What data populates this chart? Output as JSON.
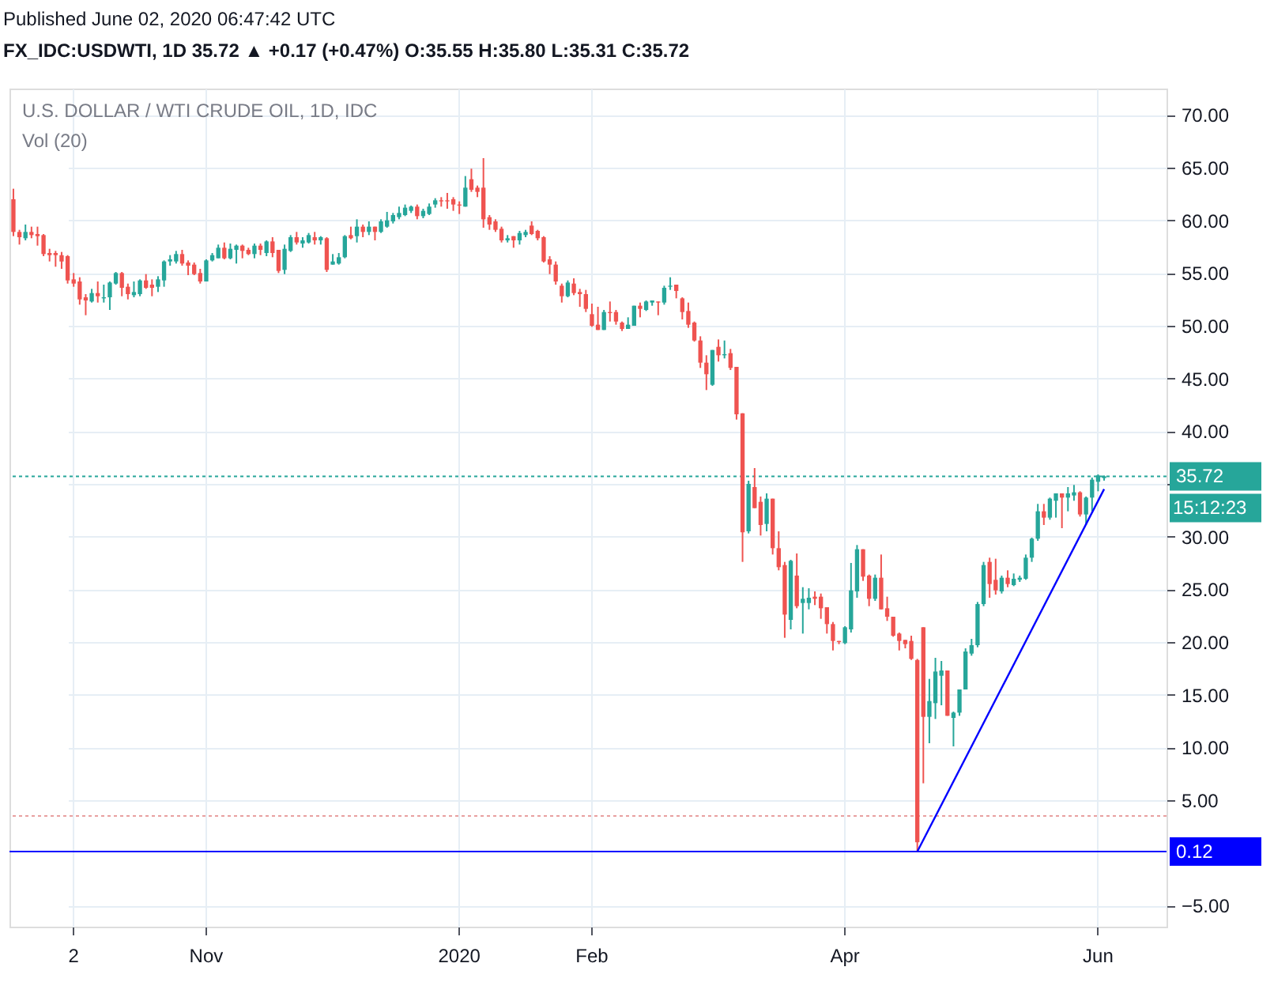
{
  "chart_data": {
    "type": "candlestick",
    "title": "FX_IDC:USDWTI, 1D 35.72 ▲ +0.17 (+0.47%) O:35.55 H:35.80 L:35.31 C:35.72",
    "subtitle": "U.S. DOLLAR / WTI CRUDE OIL, 1D, IDC",
    "annotations": [
      "Published June 02, 2020 06:47:42 UTC",
      "Vol (20)",
      "15:12:23"
    ],
    "categories": [
      null,
      null,
      null,
      null,
      null,
      null,
      null,
      null,
      null,
      null,
      "2",
      null,
      null,
      null,
      null,
      null,
      null,
      null,
      null,
      null,
      null,
      null,
      null,
      null,
      null,
      null,
      null,
      null,
      null,
      null,
      null,
      null,
      "Nov",
      null,
      null,
      null,
      null,
      null,
      null,
      null,
      null,
      null,
      null,
      null,
      null,
      null,
      null,
      null,
      null,
      null,
      null,
      null,
      null,
      null,
      null,
      null,
      null,
      null,
      null,
      null,
      null,
      null,
      null,
      null,
      null,
      null,
      null,
      null,
      null,
      null,
      null,
      null,
      null,
      null,
      "2020",
      null,
      null,
      null,
      null,
      null,
      null,
      null,
      null,
      null,
      null,
      null,
      null,
      null,
      null,
      null,
      null,
      null,
      null,
      null,
      null,
      null,
      "Feb",
      null,
      null,
      null,
      null,
      null,
      null,
      null,
      null,
      null,
      null,
      null,
      null,
      null,
      null,
      null,
      null,
      null,
      null,
      null,
      null,
      null,
      null,
      null,
      null,
      null,
      null,
      null,
      null,
      null,
      null,
      null,
      null,
      null,
      null,
      null,
      null,
      null,
      null,
      null,
      null,
      null,
      "Apr",
      null,
      null,
      null,
      null,
      null,
      null,
      null,
      null,
      null,
      null,
      null,
      null,
      null,
      null,
      null,
      null,
      null,
      null,
      null,
      null,
      null,
      null,
      null,
      null,
      null,
      null,
      null,
      null,
      null,
      null,
      null,
      null,
      null,
      null,
      null,
      null,
      null,
      null,
      null,
      null,
      null,
      "Jun",
      null
    ],
    "ohlc": [
      [
        62.0,
        63.0,
        58.5,
        58.9
      ],
      [
        58.9,
        59.1,
        57.7,
        58.4
      ],
      [
        58.3,
        59.6,
        58.1,
        58.9
      ],
      [
        58.9,
        59.4,
        58.3,
        58.6
      ],
      [
        58.7,
        59.4,
        57.6,
        58.5
      ],
      [
        58.6,
        58.7,
        56.6,
        56.8
      ],
      [
        56.9,
        57.3,
        56.1,
        56.7
      ],
      [
        56.9,
        57.1,
        55.6,
        56.7
      ],
      [
        56.7,
        57.0,
        55.4,
        56.1
      ],
      [
        56.6,
        56.7,
        54.0,
        54.3
      ],
      [
        54.4,
        55.0,
        53.7,
        54.0
      ],
      [
        54.2,
        54.6,
        52.0,
        52.5
      ],
      [
        52.7,
        53.0,
        51.0,
        52.4
      ],
      [
        52.3,
        53.5,
        52.2,
        53.1
      ],
      [
        53.1,
        54.2,
        52.2,
        52.8
      ],
      [
        52.6,
        53.9,
        52.2,
        52.7
      ],
      [
        52.7,
        54.2,
        51.5,
        54.1
      ],
      [
        54.0,
        55.1,
        53.9,
        55.0
      ],
      [
        55.0,
        55.1,
        52.8,
        53.6
      ],
      [
        53.7,
        54.0,
        52.5,
        53.0
      ],
      [
        52.9,
        54.2,
        52.7,
        53.2
      ],
      [
        53.0,
        54.4,
        52.8,
        54.3
      ],
      [
        54.3,
        54.9,
        53.5,
        53.6
      ],
      [
        53.9,
        54.4,
        52.8,
        53.6
      ],
      [
        53.7,
        54.7,
        53.2,
        54.4
      ],
      [
        54.3,
        56.2,
        53.7,
        56.1
      ],
      [
        56.1,
        56.7,
        55.7,
        56.3
      ],
      [
        56.1,
        57.1,
        55.9,
        56.8
      ],
      [
        56.8,
        57.2,
        55.7,
        55.9
      ],
      [
        56.0,
        56.2,
        54.8,
        55.7
      ],
      [
        55.8,
        56.0,
        54.8,
        54.9
      ],
      [
        55.0,
        55.4,
        54.0,
        54.2
      ],
      [
        54.2,
        56.3,
        54.2,
        56.2
      ],
      [
        56.2,
        56.9,
        56.1,
        56.7
      ],
      [
        56.4,
        57.7,
        56.4,
        57.4
      ],
      [
        57.4,
        57.9,
        56.3,
        56.4
      ],
      [
        56.4,
        57.8,
        56.3,
        57.3
      ],
      [
        57.2,
        57.7,
        55.9,
        57.6
      ],
      [
        57.6,
        57.7,
        56.4,
        57.1
      ],
      [
        57.2,
        57.4,
        56.7,
        56.8
      ],
      [
        56.8,
        57.8,
        56.4,
        57.6
      ],
      [
        57.6,
        57.8,
        56.7,
        57.2
      ],
      [
        56.9,
        58.1,
        56.6,
        58.0
      ],
      [
        58.0,
        58.4,
        56.5,
        56.9
      ],
      [
        57.2,
        57.2,
        55.0,
        55.2
      ],
      [
        55.3,
        57.7,
        54.9,
        57.3
      ],
      [
        57.1,
        58.6,
        57.0,
        58.4
      ],
      [
        58.4,
        58.9,
        57.7,
        57.9
      ],
      [
        57.8,
        58.4,
        57.4,
        58.1
      ],
      [
        57.9,
        58.8,
        57.8,
        58.6
      ],
      [
        58.4,
        58.9,
        57.7,
        58.1
      ],
      [
        58.1,
        58.5,
        57.7,
        58.4
      ],
      [
        58.3,
        58.4,
        55.1,
        55.3
      ],
      [
        55.8,
        56.8,
        55.8,
        56.1
      ],
      [
        55.9,
        56.9,
        55.8,
        56.5
      ],
      [
        56.5,
        58.6,
        56.4,
        58.5
      ],
      [
        58.6,
        59.4,
        58.2,
        58.3
      ],
      [
        58.5,
        60.1,
        57.9,
        59.4
      ],
      [
        59.4,
        59.6,
        58.4,
        58.9
      ],
      [
        58.9,
        59.9,
        58.6,
        59.4
      ],
      [
        59.4,
        59.4,
        58.1,
        58.9
      ],
      [
        58.9,
        60.1,
        58.8,
        59.9
      ],
      [
        59.4,
        60.8,
        59.3,
        60.0
      ],
      [
        59.9,
        60.7,
        59.7,
        60.5
      ],
      [
        60.3,
        61.3,
        60.1,
        60.7
      ],
      [
        60.5,
        61.5,
        60.4,
        61.2
      ],
      [
        60.9,
        61.4,
        60.7,
        61.3
      ],
      [
        61.3,
        61.5,
        60.1,
        60.4
      ],
      [
        60.4,
        61.1,
        60.2,
        60.9
      ],
      [
        60.6,
        61.6,
        60.5,
        61.3
      ],
      [
        61.5,
        62.1,
        61.2,
        61.9
      ],
      [
        61.9,
        62.2,
        61.3,
        61.8
      ],
      [
        61.9,
        62.6,
        61.1,
        61.8
      ],
      [
        62.0,
        62.2,
        60.9,
        61.5
      ],
      [
        61.5,
        61.8,
        60.6,
        61.4
      ],
      [
        61.3,
        64.2,
        61.3,
        63.1
      ],
      [
        63.9,
        64.9,
        62.7,
        62.9
      ],
      [
        63.1,
        63.3,
        62.2,
        62.7
      ],
      [
        63.1,
        65.9,
        59.3,
        60.1
      ],
      [
        60.3,
        60.5,
        59.1,
        59.6
      ],
      [
        59.9,
        60.1,
        58.9,
        59.1
      ],
      [
        59.2,
        59.4,
        57.9,
        58.1
      ],
      [
        58.1,
        58.6,
        57.9,
        58.3
      ],
      [
        58.5,
        58.5,
        57.4,
        58.1
      ],
      [
        58.1,
        59.0,
        57.7,
        58.8
      ],
      [
        58.6,
        59.1,
        58.4,
        58.9
      ],
      [
        59.5,
        59.9,
        58.6,
        58.7
      ],
      [
        59.0,
        59.1,
        58.1,
        58.3
      ],
      [
        58.4,
        58.5,
        56.0,
        56.1
      ],
      [
        56.3,
        56.6,
        54.9,
        55.8
      ],
      [
        55.8,
        56.1,
        53.9,
        54.2
      ],
      [
        53.8,
        54.0,
        52.2,
        52.8
      ],
      [
        52.8,
        54.3,
        52.7,
        54.1
      ],
      [
        54.0,
        54.5,
        52.9,
        53.1
      ],
      [
        53.2,
        53.5,
        51.8,
        53.0
      ],
      [
        53.0,
        53.4,
        51.3,
        51.6
      ],
      [
        51.1,
        52.1,
        49.9,
        50.0
      ],
      [
        50.1,
        51.8,
        49.6,
        49.6
      ],
      [
        49.6,
        51.5,
        49.6,
        51.3
      ],
      [
        51.3,
        52.3,
        50.4,
        51.2
      ],
      [
        51.3,
        51.5,
        50.1,
        50.4
      ],
      [
        50.3,
        50.4,
        49.5,
        49.7
      ],
      [
        49.7,
        50.8,
        49.7,
        50.1
      ],
      [
        50.0,
        51.9,
        50.0,
        51.9
      ],
      [
        51.9,
        52.2,
        50.8,
        51.6
      ],
      [
        51.5,
        52.4,
        51.4,
        52.3
      ],
      [
        52.2,
        52.4,
        51.9,
        52.4
      ],
      [
        52.3,
        52.3,
        51.0,
        52.2
      ],
      [
        52.2,
        53.8,
        52.0,
        53.6
      ],
      [
        53.7,
        54.6,
        53.4,
        53.8
      ],
      [
        53.9,
        53.9,
        52.6,
        53.3
      ],
      [
        52.6,
        52.7,
        50.6,
        51.3
      ],
      [
        51.4,
        52.2,
        49.8,
        50.1
      ],
      [
        50.3,
        50.4,
        48.5,
        48.6
      ],
      [
        48.6,
        49.0,
        46.0,
        46.5
      ],
      [
        46.5,
        47.2,
        43.9,
        45.4
      ],
      [
        44.4,
        47.7,
        44.3,
        47.7
      ],
      [
        48.0,
        48.7,
        46.6,
        47.2
      ],
      [
        47.2,
        48.6,
        46.9,
        47.3
      ],
      [
        47.4,
        47.8,
        45.8,
        46.0
      ],
      [
        46.1,
        46.1,
        41.1,
        41.6
      ],
      [
        41.7,
        41.7,
        27.6,
        30.4
      ],
      [
        30.5,
        35.3,
        30.3,
        35.0
      ],
      [
        34.7,
        36.5,
        32.7,
        32.7
      ],
      [
        33.3,
        33.8,
        30.1,
        31.1
      ],
      [
        31.2,
        34.1,
        30.5,
        33.6
      ],
      [
        33.6,
        33.6,
        28.3,
        28.9
      ],
      [
        28.9,
        30.5,
        26.8,
        27.1
      ],
      [
        27.3,
        27.6,
        20.4,
        22.6
      ],
      [
        22.1,
        27.8,
        21.2,
        27.7
      ],
      [
        26.3,
        28.4,
        23.2,
        23.4
      ],
      [
        23.7,
        25.2,
        20.8,
        24.1
      ],
      [
        23.7,
        25.1,
        23.1,
        24.2
      ],
      [
        24.3,
        24.8,
        23.5,
        24.1
      ],
      [
        24.3,
        24.6,
        22.2,
        23.2
      ],
      [
        23.3,
        23.3,
        20.8,
        21.7
      ],
      [
        21.7,
        21.9,
        19.2,
        20.1
      ],
      [
        20.1,
        20.1,
        19.8,
        20.0
      ],
      [
        19.9,
        21.5,
        19.8,
        21.4
      ],
      [
        21.2,
        27.5,
        20.9,
        24.9
      ],
      [
        24.8,
        29.2,
        24.2,
        28.8
      ],
      [
        28.8,
        28.8,
        25.8,
        26.2
      ],
      [
        26.3,
        26.4,
        23.4,
        24.1
      ],
      [
        24.1,
        26.4,
        23.9,
        26.1
      ],
      [
        26.1,
        28.3,
        23.1,
        23.1
      ],
      [
        23.2,
        24.3,
        22.0,
        22.4
      ],
      [
        22.4,
        22.4,
        20.5,
        20.6
      ],
      [
        20.8,
        20.9,
        19.2,
        20.1
      ],
      [
        20.2,
        20.2,
        19.4,
        19.8
      ],
      [
        20.1,
        20.6,
        18.3,
        18.4
      ],
      [
        18.3,
        18.4,
        0.12,
        1.0
      ],
      [
        21.4,
        21.4,
        6.6,
        12.9
      ],
      [
        12.9,
        16.5,
        10.4,
        14.4
      ],
      [
        14.2,
        18.5,
        12.7,
        17.2
      ],
      [
        16.8,
        18.2,
        14.0,
        17.3
      ],
      [
        17.3,
        17.3,
        13.0,
        13.0
      ],
      [
        12.8,
        13.4,
        10.1,
        13.3
      ],
      [
        13.3,
        15.5,
        13.0,
        15.5
      ],
      [
        15.5,
        19.4,
        15.5,
        19.1
      ],
      [
        18.9,
        20.3,
        18.7,
        19.7
      ],
      [
        19.7,
        23.8,
        19.5,
        23.6
      ],
      [
        23.6,
        27.6,
        23.4,
        27.3
      ],
      [
        27.6,
        28.0,
        24.2,
        25.5
      ],
      [
        25.9,
        27.9,
        24.5,
        24.9
      ],
      [
        24.8,
        26.3,
        24.6,
        26.1
      ],
      [
        26.1,
        26.8,
        25.2,
        25.5
      ],
      [
        25.4,
        26.5,
        25.3,
        26.0
      ],
      [
        25.9,
        26.3,
        25.7,
        26.1
      ],
      [
        26.0,
        28.3,
        25.9,
        28.0
      ],
      [
        28.0,
        29.9,
        27.6,
        29.8
      ],
      [
        29.8,
        33.1,
        29.6,
        32.4
      ],
      [
        32.4,
        33.1,
        31.1,
        31.8
      ],
      [
        31.8,
        33.7,
        31.6,
        33.6
      ],
      [
        33.4,
        34.1,
        31.8,
        34.1
      ],
      [
        34.1,
        34.1,
        30.8,
        33.7
      ],
      [
        33.7,
        34.7,
        32.4,
        34.1
      ],
      [
        33.9,
        34.9,
        33.4,
        34.2
      ],
      [
        34.2,
        34.3,
        31.9,
        32.1
      ],
      [
        32.1,
        33.8,
        31.1,
        33.7
      ],
      [
        33.7,
        35.6,
        32.4,
        35.4
      ],
      [
        35.2,
        35.9,
        34.3,
        35.8
      ],
      [
        35.55,
        35.8,
        35.31,
        35.72
      ]
    ],
    "series": [
      {
        "type": "line",
        "color": "#0000ff",
        "values": [
          null,
          null,
          null,
          null,
          null,
          null,
          null,
          null,
          null,
          null,
          null,
          null,
          null,
          null,
          null,
          null,
          null,
          null,
          null,
          null,
          null,
          null,
          null,
          null,
          null,
          null,
          null,
          null,
          null,
          null,
          null,
          null,
          null,
          null,
          null,
          null,
          null,
          null,
          null,
          null,
          null,
          null,
          null,
          null,
          null,
          null,
          null,
          null,
          null,
          null,
          null,
          null,
          null,
          null,
          null,
          null,
          null,
          null,
          null,
          null,
          null,
          null,
          null,
          null,
          null,
          null,
          null,
          null,
          null,
          null,
          null,
          null,
          null,
          null,
          null,
          null,
          null,
          null,
          null,
          null,
          null,
          null,
          null,
          null,
          null,
          null,
          null,
          null,
          null,
          null,
          null,
          null,
          null,
          null,
          null,
          null,
          null,
          null,
          null,
          null,
          null,
          null,
          null,
          null,
          null,
          null,
          null,
          null,
          null,
          null,
          null,
          null,
          null,
          null,
          null,
          null,
          null,
          null,
          null,
          null,
          null,
          null,
          null,
          null,
          null,
          null,
          null,
          null,
          null,
          null,
          null,
          null,
          null,
          null,
          null,
          null,
          null,
          null,
          null,
          null,
          null,
          null,
          null,
          null,
          null,
          null,
          null,
          null,
          null,
          null,
          0.12,
          null,
          null,
          null,
          null,
          null,
          null,
          null,
          null,
          null,
          null,
          null,
          null,
          null,
          null,
          null,
          null,
          null,
          null,
          null,
          null,
          null,
          null,
          null,
          null,
          null,
          null,
          null,
          null,
          null,
          null,
          34.5
        ]
      }
    ],
    "ylim": [
      -7.0,
      72.5
    ],
    "yticks": [
      {
        "value": 70,
        "label": "70.00"
      },
      {
        "value": 65,
        "label": "65.00"
      },
      {
        "value": 60,
        "label": "60.00"
      },
      {
        "value": 55,
        "label": "55.00"
      },
      {
        "value": 50,
        "label": "50.00"
      },
      {
        "value": 45,
        "label": "45.00"
      },
      {
        "value": 40,
        "label": "40.00"
      },
      {
        "value": 35,
        "label": null
      },
      {
        "value": 30,
        "label": "30.00"
      },
      {
        "value": 25,
        "label": "25.00"
      },
      {
        "value": 20,
        "label": "20.00"
      },
      {
        "value": 15,
        "label": "15.00"
      },
      {
        "value": 10,
        "label": "10.00"
      },
      {
        "value": 5,
        "label": "5.00"
      },
      {
        "value": -5,
        "label": "−5.00"
      }
    ],
    "ref_lines": [
      {
        "axis": "y",
        "value": 35.72,
        "label": "35.72",
        "color": "#26a69a",
        "line_style": "dotted"
      },
      {
        "axis": "y",
        "value": 0.12,
        "label": "0.12",
        "color": "#0000ff",
        "line_style": "solid"
      },
      {
        "axis": "y",
        "value": 3.5,
        "label": null,
        "color": "#e8a0a0",
        "line_style": "dotted"
      }
    ],
    "grid": true,
    "legend": false
  }
}
